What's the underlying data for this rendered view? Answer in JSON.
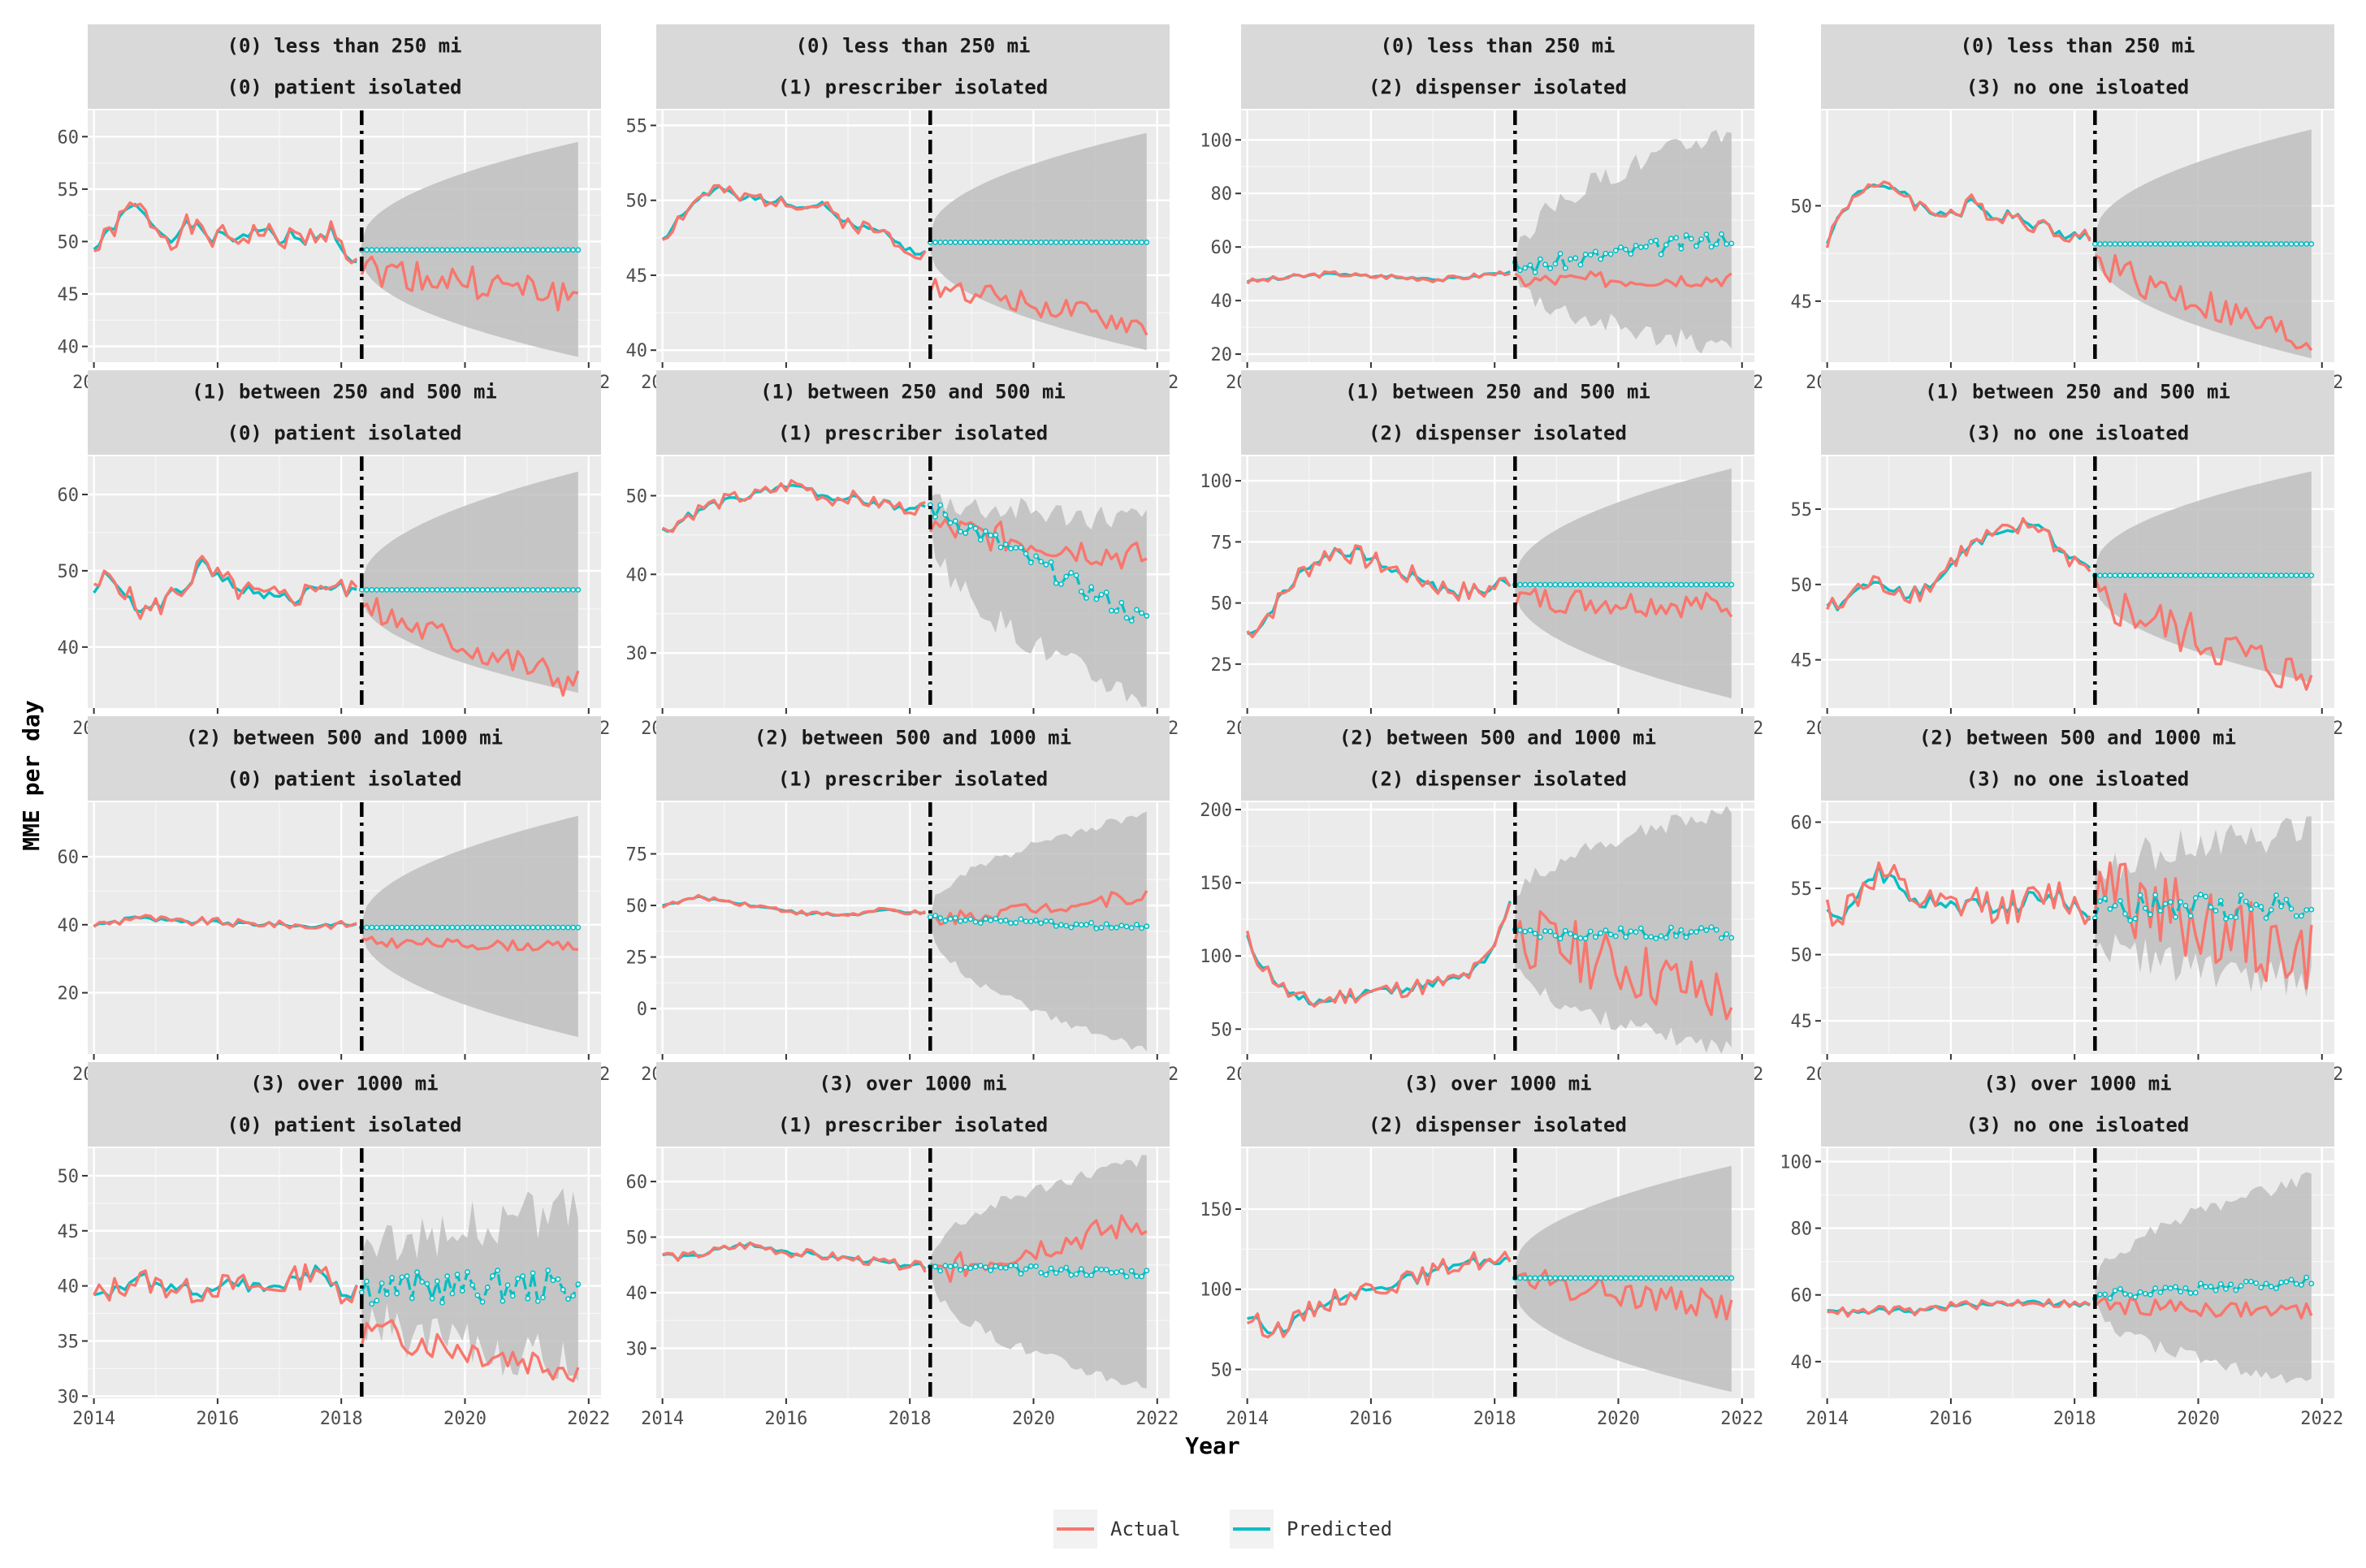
{
  "chart_data": {
    "type": "line",
    "layout": "facet_grid",
    "ylabel": "MME per day",
    "xlabel": "Year",
    "x_ticks": [
      2014,
      2016,
      2018,
      2020,
      2022
    ],
    "xlim": [
      2013.9,
      2022.2
    ],
    "intervention_year": 2018.33,
    "legend": {
      "placement": "bottom",
      "entries": [
        {
          "name": "Actual",
          "color": "#F8766D"
        },
        {
          "name": "Predicted",
          "color": "#00BFC4"
        }
      ]
    },
    "colors": {
      "actual": "#F8766D",
      "predicted": "#00BFC4",
      "band": "#bebebe"
    },
    "panels": [
      {
        "row": "(0) less than 250 mi",
        "col": "(0) patient isolated",
        "y_ticks": [
          40,
          45,
          50,
          55,
          60
        ],
        "ylim": [
          38.5,
          62.5
        ],
        "pre_level": 50.5,
        "pre_amp": 1.2,
        "pred_post": [
          49.2,
          49.2
        ],
        "actual_post": [
          47.5,
          44.7
        ],
        "band_end": [
          39,
          59.5
        ],
        "band_start_half": 0.8,
        "post_noise": 1.6,
        "pred_noise": 0,
        "seed": 1,
        "actual_pre": [
          49.0,
          50.5,
          52.0,
          53.5,
          52.5,
          51.0,
          50.2,
          51.5,
          51.0,
          50.3,
          50.5,
          50.2,
          50.8,
          51.0,
          50.0,
          50.5,
          50.2,
          50.8,
          51.2,
          49.0,
          48.3
        ]
      },
      {
        "row": "(0) less than 250 mi",
        "col": "(1) prescriber isolated",
        "y_ticks": [
          40,
          45,
          50,
          55
        ],
        "ylim": [
          39.2,
          56
        ],
        "pre_level": 49.5,
        "pre_amp": 0.6,
        "pred_post": [
          47.2,
          47.2
        ],
        "actual_post": [
          44.5,
          41.5
        ],
        "band_end": [
          40,
          54.5
        ],
        "band_start_half": 0.6,
        "post_noise": 0.8,
        "pred_noise": 0,
        "seed": 2,
        "actual_pre": [
          47.5,
          48.5,
          49.5,
          50.3,
          50.8,
          50.4,
          50.0,
          50.2,
          50.0,
          50.2,
          49.9,
          49.5,
          49.8,
          49.0,
          48.6,
          48.3,
          48.0,
          47.8,
          47.2,
          46.8,
          46.3
        ]
      },
      {
        "row": "(0) less than 250 mi",
        "col": "(2) dispenser isolated",
        "y_ticks": [
          20,
          40,
          60,
          80,
          100
        ],
        "ylim": [
          17,
          111
        ],
        "pre_level": 49,
        "pre_amp": 1.2,
        "pred_post": [
          52,
          64
        ],
        "actual_post": [
          47.5,
          48.5
        ],
        "band_end": [
          22,
          104
        ],
        "band_start_half": 2,
        "post_noise": 3,
        "pred_noise": 3,
        "seed": 3,
        "actual_pre": [
          47,
          47.5,
          48,
          48.5,
          49,
          49.5,
          50,
          50,
          49.5,
          49,
          49,
          49,
          48.5,
          48.5,
          48,
          48,
          48.5,
          49,
          49.5,
          50,
          51
        ]
      },
      {
        "row": "(0) less than 250 mi",
        "col": "(3) no one isloated",
        "y_ticks": [
          45,
          50
        ],
        "ylim": [
          41.8,
          55
        ],
        "pre_level": 49.5,
        "pre_amp": 0.5,
        "pred_post": [
          48.0,
          48.0
        ],
        "actual_post": [
          47.0,
          42.7
        ],
        "band_end": [
          42,
          54
        ],
        "band_start_half": 0.5,
        "post_noise": 0.9,
        "pred_noise": 0,
        "seed": 4,
        "actual_pre": [
          48.2,
          49.5,
          50.5,
          51.2,
          50.8,
          51.0,
          50.6,
          50.0,
          49.6,
          49.8,
          49.5,
          50.2,
          49.8,
          49.4,
          49.6,
          49.2,
          49.0,
          48.8,
          48.6,
          48.4,
          48.3
        ]
      },
      {
        "row": "(1) between 250 and 500 mi",
        "col": "(0) patient isolated",
        "y_ticks": [
          40,
          50,
          60
        ],
        "ylim": [
          32,
          65
        ],
        "pre_level": 47.5,
        "pre_amp": 1.8,
        "pred_post": [
          47.5,
          47.5
        ],
        "actual_post": [
          45,
          35
        ],
        "band_end": [
          34,
          63
        ],
        "band_start_half": 1,
        "post_noise": 2.2,
        "pred_noise": 0,
        "seed": 5,
        "actual_pre": [
          47,
          49.5,
          48.5,
          45.5,
          44.5,
          45.5,
          47,
          48,
          51,
          49.5,
          48.5,
          47.5,
          47,
          46.5,
          46.5,
          46.5,
          47,
          48.5,
          48,
          47.5,
          47.5
        ]
      },
      {
        "row": "(1) between 250 and 500 mi",
        "col": "(1) prescriber isolated",
        "y_ticks": [
          30,
          40,
          50
        ],
        "ylim": [
          23,
          55
        ],
        "pre_level": 48.5,
        "pre_amp": 1.0,
        "pred_post": [
          48.5,
          34
        ],
        "actual_post": [
          46,
          42
        ],
        "band_end": [
          24,
          47
        ],
        "band_start_half": 1.5,
        "post_noise": 2.0,
        "pred_noise": 1.2,
        "seed": 6,
        "actual_pre": [
          45.5,
          46.5,
          47.5,
          48.5,
          49.0,
          49.5,
          49.8,
          50.0,
          50.5,
          51.0,
          51.5,
          51.0,
          50.0,
          49.5,
          50.0,
          49.5,
          49.0,
          49.0,
          48.5,
          48.5,
          48.5
        ]
      },
      {
        "row": "(1) between 250 and 500 mi",
        "col": "(2) dispenser isolated",
        "y_ticks": [
          25,
          50,
          75,
          100
        ],
        "ylim": [
          7,
          110
        ],
        "pre_level": 58,
        "pre_amp": 5.0,
        "pred_post": [
          57.5,
          57.5
        ],
        "actual_post": [
          52,
          49
        ],
        "band_end": [
          11,
          105
        ],
        "band_start_half": 3,
        "post_noise": 5.5,
        "pred_noise": 0,
        "seed": 7,
        "actual_pre": [
          38,
          42,
          48,
          55,
          62,
          66,
          70,
          72,
          70,
          68,
          66,
          64,
          62,
          60,
          58,
          56,
          55,
          54,
          55,
          57,
          60
        ]
      },
      {
        "row": "(1) between 250 and 500 mi",
        "col": "(3) no one isloated",
        "y_ticks": [
          45,
          50,
          55
        ],
        "ylim": [
          41.8,
          58.5
        ],
        "pre_level": 50.5,
        "pre_amp": 0.8,
        "pred_post": [
          50.6,
          50.6
        ],
        "actual_post": [
          49,
          43.5
        ],
        "band_end": [
          43.5,
          57.5
        ],
        "band_start_half": 0.6,
        "post_noise": 1.6,
        "pred_noise": 0,
        "seed": 8,
        "actual_pre": [
          48.5,
          48.5,
          49.5,
          50.0,
          50.0,
          49.8,
          49.5,
          49.5,
          50.0,
          51.0,
          52.0,
          52.5,
          53.0,
          53.2,
          53.5,
          53.8,
          54.0,
          53.0,
          52.0,
          51.5,
          51.0
        ]
      },
      {
        "row": "(2) between 500 and 1000 mi",
        "col": "(0) patient isolated",
        "y_ticks": [
          20,
          40,
          60
        ],
        "ylim": [
          2,
          76
        ],
        "pre_level": 40.5,
        "pre_amp": 1.3,
        "pred_post": [
          39.2,
          39.2
        ],
        "actual_post": [
          35,
          33.5
        ],
        "band_end": [
          7,
          72
        ],
        "band_start_half": 1.5,
        "post_noise": 1.5,
        "pred_noise": 0,
        "seed": 9,
        "actual_pre": [
          40,
          40.5,
          41,
          42.5,
          42,
          41.5,
          41,
          40.5,
          41,
          41,
          40.5,
          40.5,
          40,
          40.5,
          40,
          40,
          39.5,
          39.5,
          40,
          40,
          40
        ]
      },
      {
        "row": "(2) between 500 and 1000 mi",
        "col": "(1) prescriber isolated",
        "y_ticks": [
          0,
          25,
          50,
          75
        ],
        "ylim": [
          -22,
          100
        ],
        "pre_level": 48.5,
        "pre_amp": 1.3,
        "pred_post": [
          44,
          39
        ],
        "actual_post": [
          43,
          55
        ],
        "band_end": [
          -20,
          94
        ],
        "band_start_half": 2,
        "post_noise": 3.5,
        "pred_noise": 1.5,
        "seed": 10,
        "actual_pre": [
          50,
          51,
          53,
          54,
          53,
          52,
          51,
          50,
          49,
          48,
          47,
          46,
          46,
          45.5,
          45.5,
          46,
          47,
          48,
          47,
          46.5,
          46
        ]
      },
      {
        "row": "(2) between 500 and 1000 mi",
        "col": "(2) dispenser isolated",
        "y_ticks": [
          50,
          100,
          150,
          200
        ],
        "ylim": [
          33,
          205
        ],
        "pre_level": 78,
        "pre_amp": 7,
        "pred_post": [
          115,
          116
        ],
        "actual_post": [
          115,
          70
        ],
        "band_end": [
          36,
          200
        ],
        "band_start_half": 20,
        "post_noise": 22,
        "pred_noise": 4,
        "seed": 11,
        "actual_pre": [
          112,
          95,
          85,
          75,
          70,
          68,
          70,
          72,
          74,
          75,
          76,
          77,
          78,
          79,
          80,
          82,
          84,
          88,
          95,
          110,
          140
        ]
      },
      {
        "row": "(2) between 500 and 1000 mi",
        "col": "(3) no one isloated",
        "y_ticks": [
          45,
          50,
          55,
          60
        ],
        "ylim": [
          42.5,
          61.5
        ],
        "pre_level": 54,
        "pre_amp": 1.5,
        "pred_post": [
          53.5,
          53.8
        ],
        "actual_post": [
          55,
          49.5
        ],
        "band_end": [
          48,
          59.5
        ],
        "band_start_half": 2,
        "post_noise": 3.0,
        "pred_noise": 1.0,
        "seed": 12,
        "actual_pre": [
          53.5,
          53,
          54,
          55.5,
          56,
          55.5,
          54.5,
          54,
          53.5,
          53.5,
          53.5,
          54,
          54,
          53.5,
          53.5,
          54,
          54,
          54.5,
          54.5,
          53.5,
          53
        ]
      },
      {
        "row": "(3) over 1000 mi",
        "col": "(0) patient isolated",
        "y_ticks": [
          30,
          35,
          40,
          45,
          50
        ],
        "ylim": [
          29.8,
          52.5
        ],
        "pre_level": 40,
        "pre_amp": 1.3,
        "pred_post": [
          39.8,
          40.0
        ],
        "actual_post": [
          36,
          32.5
        ],
        "band_end": [
          33,
          47
        ],
        "band_start_half": 2,
        "post_noise": 1.5,
        "pred_noise": 1.5,
        "seed": 13,
        "actual_pre": [
          39,
          39.5,
          40,
          40.5,
          40.5,
          40,
          40,
          39.5,
          39.5,
          40,
          40,
          40,
          40,
          39.5,
          40,
          40.5,
          41,
          42,
          40,
          39.5,
          39.5
        ]
      },
      {
        "row": "(3) over 1000 mi",
        "col": "(1) prescriber isolated",
        "y_ticks": [
          30,
          40,
          50,
          60
        ],
        "ylim": [
          21,
          66
        ],
        "pre_level": 46.5,
        "pre_amp": 0.9,
        "pred_post": [
          44.5,
          43.5
        ],
        "actual_post": [
          43.5,
          53
        ],
        "band_end": [
          23,
          64
        ],
        "band_start_half": 1.5,
        "post_noise": 2.5,
        "pred_noise": 0.8,
        "seed": 14,
        "actual_pre": [
          47,
          46.5,
          46.5,
          47,
          47.5,
          48,
          48.5,
          48.5,
          48,
          47.5,
          47,
          47,
          46.5,
          46.5,
          46,
          46,
          45.5,
          45.5,
          45,
          45,
          44.5
        ]
      },
      {
        "row": "(3) over 1000 mi",
        "col": "(2) dispenser isolated",
        "y_ticks": [
          50,
          100,
          150
        ],
        "ylim": [
          32,
          188
        ],
        "pre_level": 100,
        "pre_amp": 7,
        "pred_post": [
          107,
          107
        ],
        "actual_post": [
          105,
          90
        ],
        "band_end": [
          36,
          177
        ],
        "band_start_half": 8,
        "post_noise": 9,
        "pred_noise": 0,
        "seed": 15,
        "actual_pre": [
          82,
          78,
          75,
          77,
          82,
          88,
          92,
          95,
          98,
          100,
          102,
          104,
          105,
          107,
          110,
          113,
          116,
          118,
          118,
          115,
          120
        ]
      },
      {
        "row": "(3) over 1000 mi",
        "col": "(3) no one isloated",
        "y_ticks": [
          40,
          60,
          80,
          100
        ],
        "ylim": [
          29,
          104
        ],
        "pre_level": 56.5,
        "pre_amp": 1.5,
        "pred_post": [
          60,
          64
        ],
        "actual_post": [
          57,
          55
        ],
        "band_end": [
          33,
          95
        ],
        "band_start_half": 2,
        "post_noise": 2.5,
        "pred_noise": 1.5,
        "seed": 16,
        "actual_pre": [
          56,
          55,
          54.5,
          55,
          55.5,
          55.5,
          55,
          55,
          56,
          56.5,
          57,
          57,
          57,
          57.5,
          57.5,
          58,
          58,
          57.5,
          57.5,
          57,
          57
        ]
      }
    ]
  }
}
